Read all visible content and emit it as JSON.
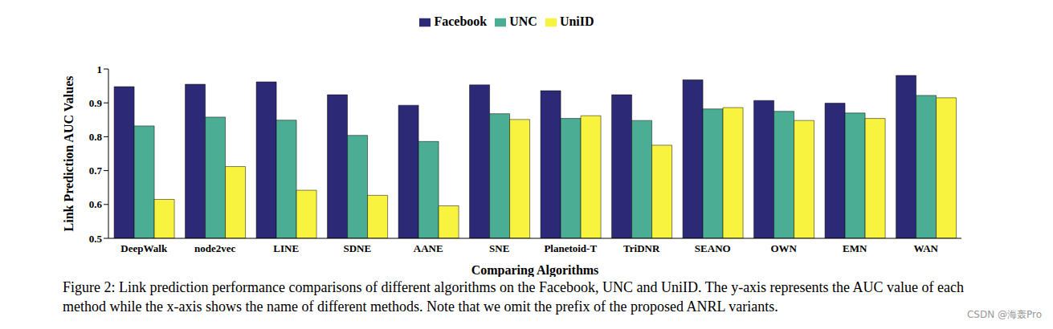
{
  "chart_data": {
    "type": "bar",
    "x_label": "Comparing Algorithms",
    "y_label": "Link Prediction AUC Values",
    "caption": "Figure 2: Link prediction performance comparisons of different algorithms on the Facebook, UNC and UniID. The y-axis represents the AUC value of each method while the x-axis shows the name of different methods. Note that we omit the prefix of the proposed ANRL variants.",
    "annotations": [
      "CSDN @海轰Pro"
    ],
    "categories": [
      "DeepWalk",
      "node2vec",
      "LINE",
      "SDNE",
      "AANE",
      "SNE",
      "Planetoid-T",
      "TriDNR",
      "SEANO",
      "OWN",
      "EMN",
      "WAN"
    ],
    "series": [
      {
        "name": "Facebook",
        "color": "#2c2a77",
        "values": [
          0.948,
          0.955,
          0.962,
          0.924,
          0.893,
          0.953,
          0.936,
          0.924,
          0.968,
          0.907,
          0.899,
          0.981
        ]
      },
      {
        "name": "UNC",
        "color": "#4bae94",
        "values": [
          0.832,
          0.858,
          0.849,
          0.804,
          0.786,
          0.868,
          0.854,
          0.848,
          0.882,
          0.875,
          0.87,
          0.922
        ]
      },
      {
        "name": "UniID",
        "color": "#f8f33e",
        "values": [
          0.615,
          0.712,
          0.642,
          0.627,
          0.596,
          0.851,
          0.862,
          0.775,
          0.886,
          0.848,
          0.854,
          0.915
        ]
      }
    ],
    "ylim": [
      0.5,
      1
    ],
    "yticks": [
      0.5,
      0.6,
      0.7,
      0.8,
      0.9,
      1
    ],
    "grid": false,
    "legend": "top"
  }
}
